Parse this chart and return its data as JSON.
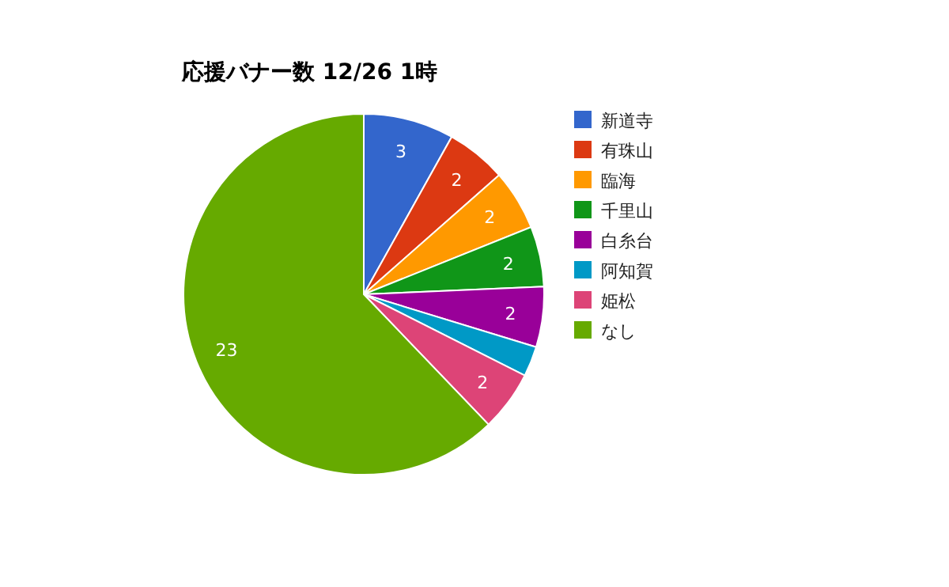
{
  "chart_data": {
    "type": "pie",
    "title": "応援バナー数 12/26 1時",
    "categories": [
      "新道寺",
      "有珠山",
      "臨海",
      "千里山",
      "白糸台",
      "阿知賀",
      "姫松",
      "なし"
    ],
    "values": [
      3,
      2,
      2,
      2,
      2,
      1,
      2,
      23
    ],
    "value_labels": [
      "3",
      "2",
      "2",
      "2",
      "2",
      null,
      "2",
      "23"
    ],
    "colors": [
      "#3366cc",
      "#dc3912",
      "#ff9900",
      "#109618",
      "#990099",
      "#0099c6",
      "#dd4477",
      "#66aa00"
    ],
    "legend": "right"
  }
}
